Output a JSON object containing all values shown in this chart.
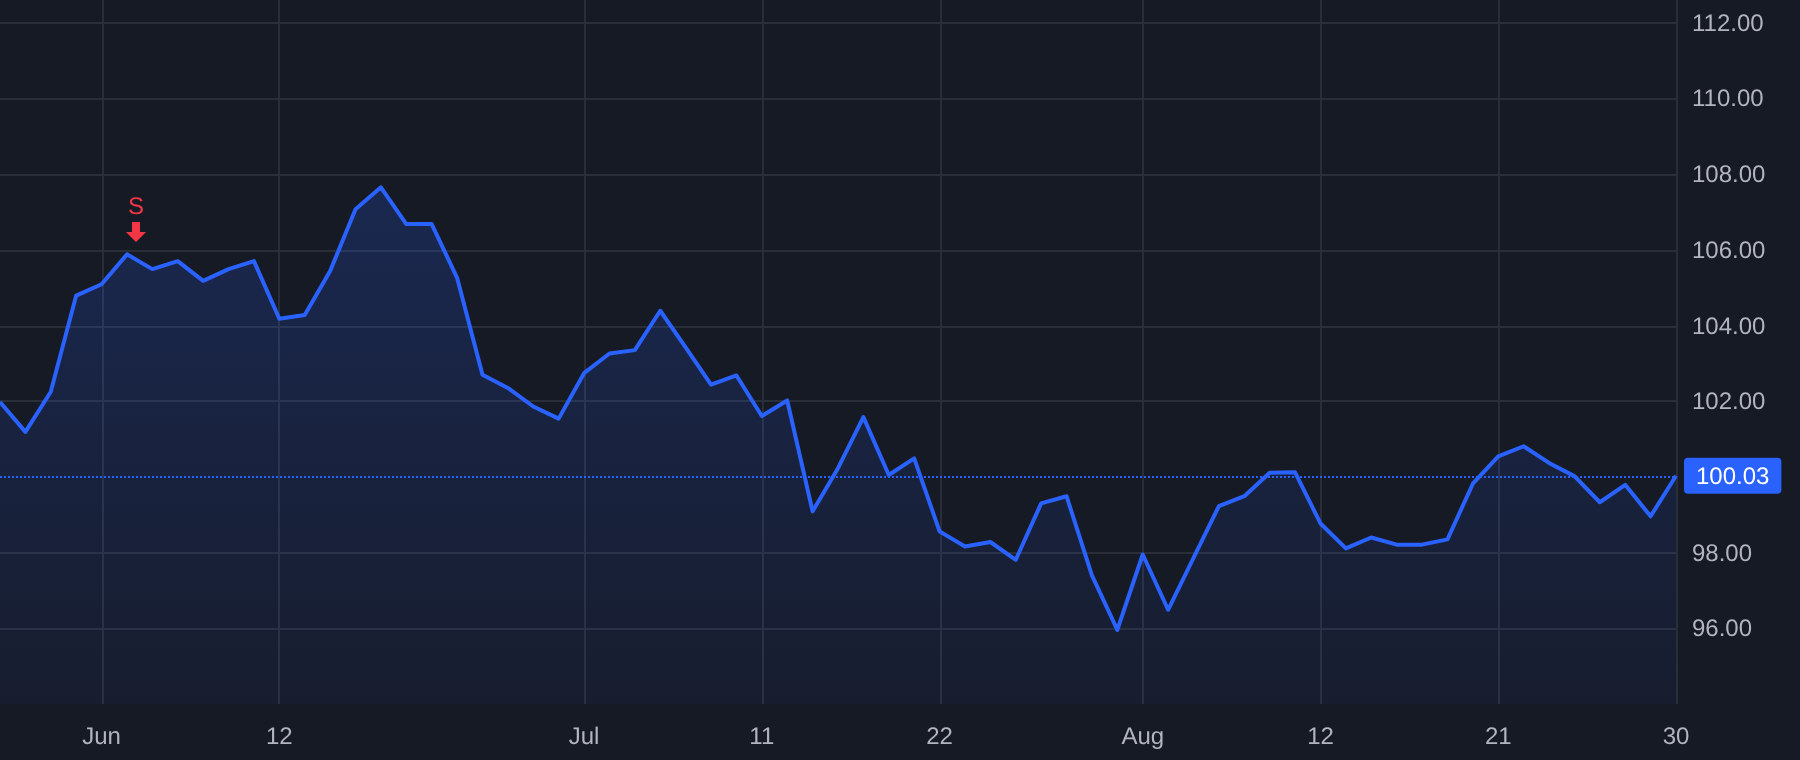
{
  "chart_data": {
    "type": "area",
    "categories": [
      null,
      null,
      null,
      null,
      "Jun",
      null,
      null,
      null,
      null,
      null,
      null,
      "12",
      null,
      null,
      null,
      null,
      null,
      null,
      null,
      null,
      null,
      null,
      null,
      "Jul",
      null,
      null,
      null,
      null,
      null,
      null,
      "11",
      null,
      null,
      null,
      null,
      null,
      null,
      "22",
      null,
      null,
      null,
      null,
      null,
      null,
      null,
      "Aug",
      null,
      null,
      null,
      null,
      null,
      null,
      "12",
      null,
      null,
      null,
      null,
      null,
      null,
      "21",
      null,
      null,
      null,
      null,
      null,
      null,
      "30"
    ],
    "series": [
      {
        "color": "#2962ff",
        "values": [
          101.98,
          101.19,
          102.25,
          104.79,
          105.09,
          105.88,
          105.49,
          105.7,
          105.18,
          105.49,
          105.7,
          104.18,
          104.28,
          105.44,
          107.07,
          107.65,
          106.68,
          106.68,
          105.26,
          102.7,
          102.35,
          101.86,
          101.54,
          102.74,
          103.26,
          103.35,
          104.39,
          103.42,
          102.44,
          102.68,
          101.61,
          102.02,
          99.09,
          100.23,
          101.58,
          100.05,
          100.49,
          98.56,
          98.16,
          98.28,
          97.81,
          99.3,
          99.49,
          97.4,
          95.96,
          97.95,
          96.49,
          97.86,
          99.23,
          99.49,
          100.11,
          100.12,
          98.77,
          98.11,
          98.4,
          98.21,
          98.21,
          98.35,
          99.82,
          100.54,
          100.81,
          100.37,
          100.02,
          99.33,
          99.79,
          98.96,
          100.03
        ]
      }
    ],
    "ylim": [
      94,
      112.6
    ],
    "yticks": [
      {
        "value": 96,
        "label": "96.00"
      },
      {
        "value": 98,
        "label": "98.00"
      },
      {
        "value": 102,
        "label": "102.00"
      },
      {
        "value": 104,
        "label": "104.00"
      },
      {
        "value": 106,
        "label": "106.00"
      },
      {
        "value": 108,
        "label": "108.00"
      },
      {
        "value": 110,
        "label": "110.00"
      },
      {
        "value": 112,
        "label": "112.00"
      }
    ],
    "ref_lines": [
      {
        "axis": "y",
        "value": 100.03,
        "label": "100.03",
        "color": "#2962ff",
        "line_style": "dotted"
      }
    ],
    "annotations": [
      "S"
    ],
    "grid": true,
    "marker": "none"
  }
}
